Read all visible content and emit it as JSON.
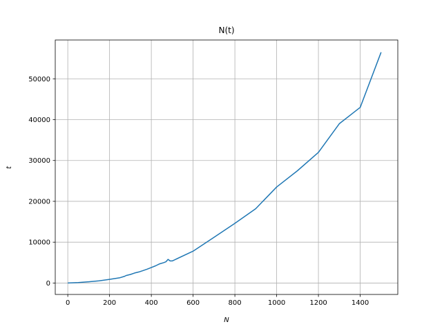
{
  "chart_data": {
    "type": "line",
    "title": "N(t)",
    "xlabel": "N",
    "ylabel": "t",
    "xlim": [
      -60,
      1580
    ],
    "ylim": [
      -2800,
      59500
    ],
    "x_ticks": [
      0,
      200,
      400,
      600,
      800,
      1000,
      1200,
      1400
    ],
    "x_tick_labels": [
      "0",
      "200",
      "400",
      "600",
      "800",
      "1000",
      "1200",
      "1400"
    ],
    "y_ticks": [
      0,
      10000,
      20000,
      30000,
      40000,
      50000
    ],
    "y_tick_labels": [
      "0",
      "10000",
      "20000",
      "30000",
      "40000",
      "50000"
    ],
    "grid": true,
    "series": [
      {
        "color": "#1f77b4",
        "x": [
          0,
          50,
          100,
          150,
          200,
          250,
          270,
          280,
          300,
          320,
          340,
          360,
          380,
          400,
          420,
          440,
          460,
          470,
          480,
          490,
          500,
          600,
          700,
          800,
          900,
          1000,
          1100,
          1200,
          1300,
          1400,
          1500
        ],
        "y": [
          0,
          100,
          300,
          550,
          900,
          1300,
          1600,
          1850,
          2100,
          2450,
          2700,
          3050,
          3400,
          3800,
          4200,
          4700,
          5000,
          5200,
          5800,
          5400,
          5400,
          7800,
          11200,
          14600,
          18200,
          23500,
          27500,
          32000,
          39000,
          43000,
          56500
        ]
      }
    ]
  }
}
